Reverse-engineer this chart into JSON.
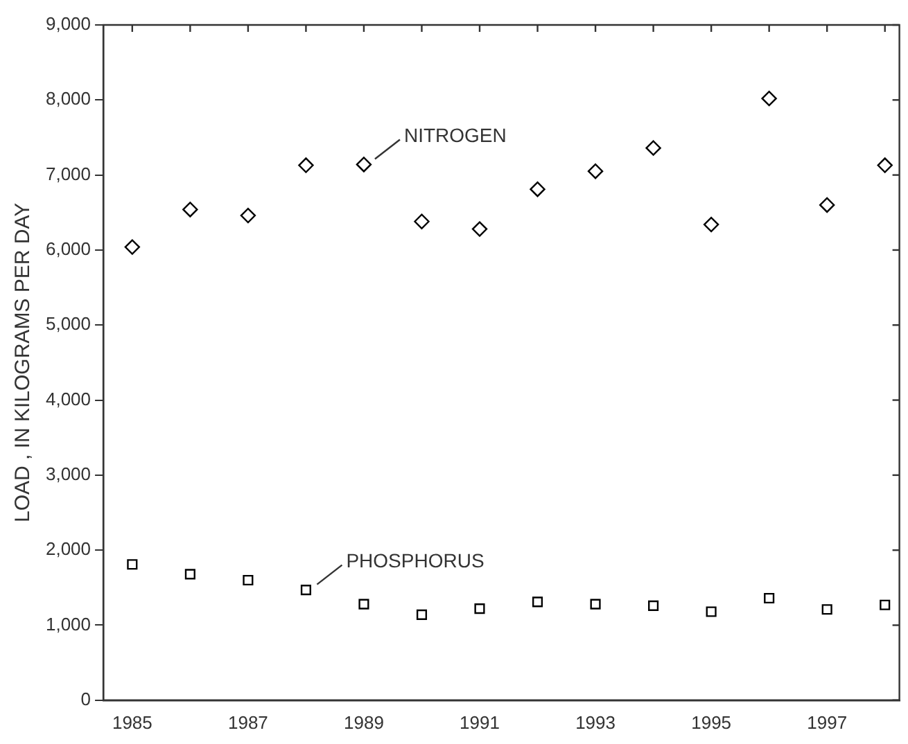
{
  "chart_data": {
    "type": "scatter",
    "ylabel": "LOAD , IN KILOGRAMS PER DAY",
    "x": [
      1985,
      1986,
      1987,
      1988,
      1989,
      1990,
      1991,
      1992,
      1993,
      1994,
      1995,
      1996,
      1997,
      1998
    ],
    "series": [
      {
        "name": "NITROGEN",
        "color": "#000000",
        "marker": "diamond",
        "values": [
          6040,
          6540,
          6460,
          7130,
          7140,
          6380,
          6280,
          6810,
          7050,
          7360,
          6340,
          8020,
          6600,
          7130
        ]
      },
      {
        "name": "PHOSPHORUS",
        "color": "#000000",
        "marker": "square",
        "values": [
          1810,
          1680,
          1600,
          1470,
          1280,
          1140,
          1220,
          1310,
          1280,
          1260,
          1180,
          1360,
          1210,
          1270
        ]
      }
    ],
    "xlim": [
      1984.5,
      1998.25
    ],
    "xticks": [
      1985,
      {
        "value": 1986,
        "label": null
      },
      1987,
      {
        "value": 1988,
        "label": null
      },
      1989,
      {
        "value": 1990,
        "label": null
      },
      1991,
      {
        "value": 1992,
        "label": null
      },
      1993,
      {
        "value": 1994,
        "label": null
      },
      1995,
      {
        "value": 1996,
        "label": null
      },
      1997,
      {
        "value": 1998,
        "label": null
      }
    ],
    "ylim": [
      0,
      9000
    ],
    "yticks": [
      0,
      {
        "value": 1000,
        "label": "1,000"
      },
      {
        "value": 2000,
        "label": "2,000"
      },
      {
        "value": 3000,
        "label": "3,000"
      },
      {
        "value": 4000,
        "label": "4,000"
      },
      {
        "value": 5000,
        "label": "5,000"
      },
      {
        "value": 6000,
        "label": "6,000"
      },
      {
        "value": 7000,
        "label": "7,000"
      },
      {
        "value": 8000,
        "label": "8,000"
      },
      {
        "value": 9000,
        "label": "9,000"
      }
    ],
    "grid": false,
    "legend": false
  }
}
